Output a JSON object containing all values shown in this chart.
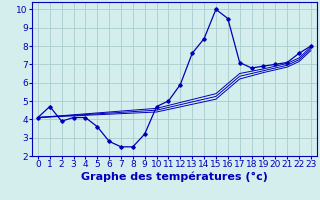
{
  "xlabel": "Graphe des températures (°c)",
  "background_color": "#d4eeee",
  "line_color": "#0000bb",
  "grid_color": "#a8cccc",
  "xlim": [
    -0.5,
    23.5
  ],
  "ylim": [
    2,
    10.4
  ],
  "xticks": [
    0,
    1,
    2,
    3,
    4,
    5,
    6,
    7,
    8,
    9,
    10,
    11,
    12,
    13,
    14,
    15,
    16,
    17,
    18,
    19,
    20,
    21,
    22,
    23
  ],
  "yticks": [
    2,
    3,
    4,
    5,
    6,
    7,
    8,
    9,
    10
  ],
  "line1_x": [
    0,
    1,
    2,
    3,
    4,
    5,
    6,
    7,
    8,
    9,
    10,
    11,
    12,
    13,
    14,
    15,
    16,
    17,
    18,
    19,
    20,
    21,
    22,
    23
  ],
  "line1_y": [
    4.1,
    4.7,
    3.9,
    4.1,
    4.1,
    3.6,
    2.8,
    2.5,
    2.5,
    3.2,
    4.7,
    5.0,
    5.9,
    7.6,
    8.4,
    10.0,
    9.5,
    7.1,
    6.8,
    6.9,
    7.0,
    7.1,
    7.6,
    8.0
  ],
  "line2_x": [
    0,
    10,
    15,
    17,
    19,
    20,
    21,
    22,
    23
  ],
  "line2_y": [
    4.1,
    4.4,
    5.1,
    6.2,
    6.55,
    6.7,
    6.85,
    7.15,
    7.75
  ],
  "line3_x": [
    0,
    10,
    15,
    17,
    19,
    20,
    21,
    22,
    23
  ],
  "line3_y": [
    4.1,
    4.5,
    5.25,
    6.35,
    6.65,
    6.8,
    6.95,
    7.25,
    7.85
  ],
  "line4_x": [
    0,
    10,
    15,
    17,
    19,
    20,
    21,
    22,
    23
  ],
  "line4_y": [
    4.1,
    4.6,
    5.4,
    6.5,
    6.75,
    6.9,
    7.05,
    7.35,
    7.95
  ],
  "fontsize_xlabel": 8,
  "fontsize_ticks": 6.5
}
